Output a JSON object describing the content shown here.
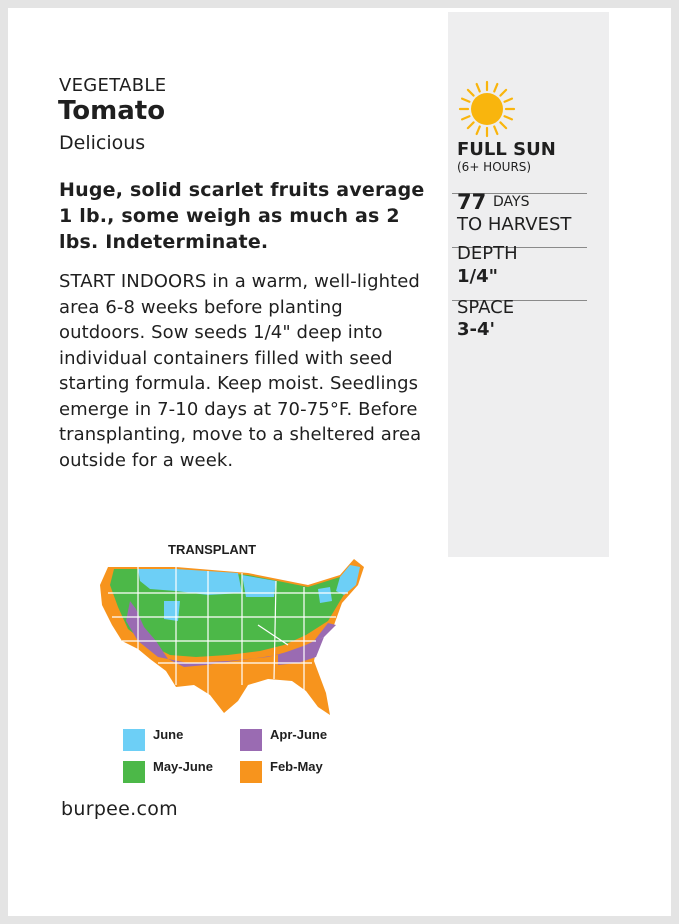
{
  "packet": {
    "category": "VEGETABLE",
    "name": "Tomato",
    "variety": "Delicious",
    "description": "Huge, solid scarlet fruits average 1 lb., some weigh as much as 2 lbs. Indeterminate.",
    "instructions": "START INDOORS in a warm, well-lighted area 6-8 weeks before planting outdoors. Sow seeds 1/4\" deep into individual containers filled with seed starting formula. Keep moist. Seedlings emerge in 7-10 days at 70-75°F. Before transplanting, move to a sheltered area outside for a week.",
    "website": "burpee.com"
  },
  "sidebar": {
    "sun_icon": "sun-icon",
    "sun_title": "FULL SUN",
    "sun_subtitle": "(6+ HOURS)",
    "days_number": "77",
    "days_unit": "DAYS",
    "days_label": "TO HARVEST",
    "depth_label": "DEPTH",
    "depth_value": "1/4\"",
    "space_label": "SPACE",
    "space_value": "3-4'"
  },
  "map": {
    "title": "TRANSPLANT",
    "legend": [
      {
        "label": "June",
        "color": "#6dcff6"
      },
      {
        "label": "Apr-June",
        "color": "#9a6bb2"
      },
      {
        "label": "May-June",
        "color": "#4cb848"
      },
      {
        "label": "Feb-May",
        "color": "#f7941d"
      }
    ]
  },
  "colors": {
    "sun": "#f9b50d",
    "sidebar_bg": "#eeeeef"
  }
}
